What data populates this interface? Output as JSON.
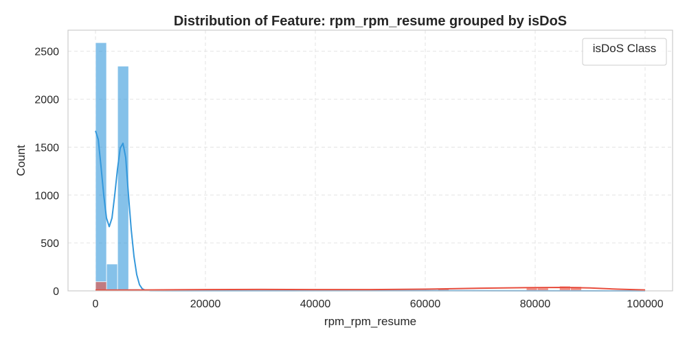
{
  "chart_data": {
    "type": "bar",
    "title": "Distribution of Feature: rpm_rpm_resume grouped by isDoS",
    "xlabel": "rpm_rpm_resume",
    "ylabel": "Count",
    "xlim": [
      -5000,
      105000
    ],
    "ylim": [
      0,
      2720
    ],
    "xticks": [
      0,
      20000,
      40000,
      60000,
      80000,
      100000
    ],
    "yticks": [
      0,
      500,
      1000,
      1500,
      2000,
      2500
    ],
    "grid": true,
    "legend": {
      "title": "isDoS Class",
      "placement": "top-right",
      "entries": []
    },
    "bin_width": 2010,
    "series": [
      {
        "color": "#3498db",
        "bins": [
          {
            "x0": 0,
            "value": 2590
          },
          {
            "x0": 2010,
            "value": 280
          },
          {
            "x0": 4020,
            "value": 2345
          },
          {
            "x0": 6030,
            "value": 20
          },
          {
            "x0": 8040,
            "value": 10
          },
          {
            "x0": 10050,
            "value": 5
          }
        ],
        "kde": [
          [
            0,
            1670
          ],
          [
            500,
            1580
          ],
          [
            1000,
            1300
          ],
          [
            1500,
            1000
          ],
          [
            2000,
            760
          ],
          [
            2500,
            670
          ],
          [
            3000,
            760
          ],
          [
            3500,
            1000
          ],
          [
            4000,
            1270
          ],
          [
            4500,
            1490
          ],
          [
            5000,
            1540
          ],
          [
            5500,
            1390
          ],
          [
            6000,
            1000
          ],
          [
            6500,
            640
          ],
          [
            7000,
            360
          ],
          [
            7500,
            170
          ],
          [
            8000,
            65
          ],
          [
            8500,
            22
          ],
          [
            9000,
            8
          ],
          [
            10000,
            2
          ],
          [
            15000,
            1
          ],
          [
            30000,
            1
          ],
          [
            60000,
            2
          ],
          [
            80000,
            1
          ],
          [
            100000,
            0
          ]
        ]
      },
      {
        "color": "#e74c3c",
        "bins": [
          {
            "x0": 0,
            "value": 95
          },
          {
            "x0": 2010,
            "value": 12
          },
          {
            "x0": 4020,
            "value": 8
          },
          {
            "x0": 30150,
            "value": 10
          },
          {
            "x0": 34170,
            "value": 12
          },
          {
            "x0": 62310,
            "value": 25
          },
          {
            "x0": 78390,
            "value": 30
          },
          {
            "x0": 80400,
            "value": 30
          },
          {
            "x0": 84420,
            "value": 50
          },
          {
            "x0": 86430,
            "value": 45
          }
        ],
        "kde": [
          [
            0,
            8
          ],
          [
            10000,
            10
          ],
          [
            20000,
            13
          ],
          [
            30000,
            15
          ],
          [
            40000,
            13
          ],
          [
            50000,
            13
          ],
          [
            60000,
            18
          ],
          [
            70000,
            28
          ],
          [
            80000,
            34
          ],
          [
            85000,
            36
          ],
          [
            90000,
            30
          ],
          [
            95000,
            18
          ],
          [
            100000,
            10
          ]
        ]
      }
    ]
  }
}
